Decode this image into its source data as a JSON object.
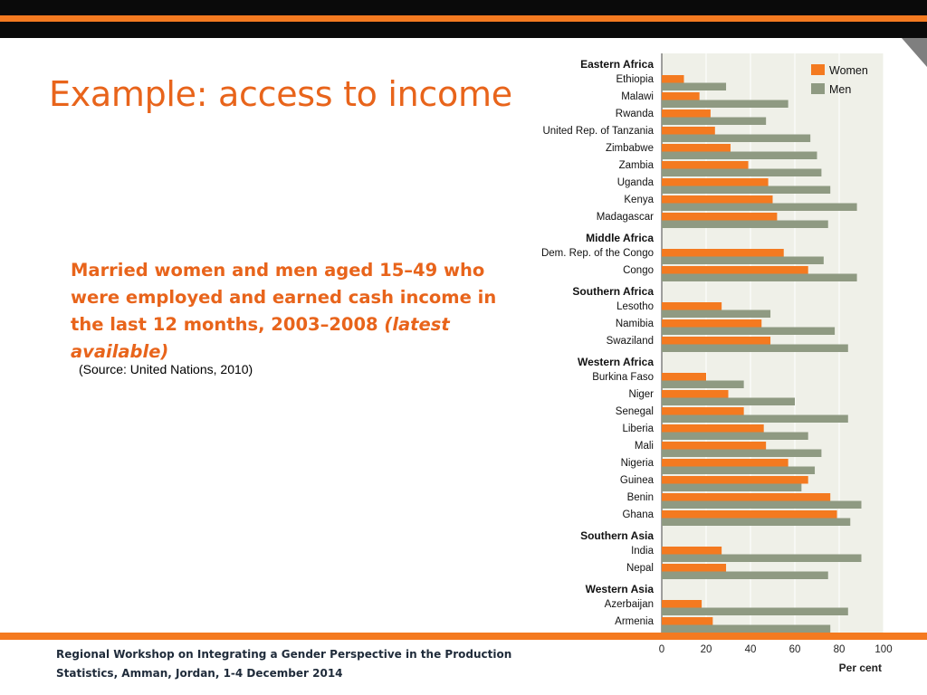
{
  "slide": {
    "title": "Example: access to income",
    "subtitle_main": "Married women and men aged 15–49 who were employed and earned cash income in the last 12 months, 2003–2008 ",
    "subtitle_italic": "(latest available)",
    "source": "(Source: United Nations, 2010)",
    "footer_line1": "Regional Workshop on Integrating a Gender Perspective in the Production",
    "footer_line2": "Statistics, Amman, Jordan, 1-4 December 2014"
  },
  "colors": {
    "accent": "#f47a20",
    "title": "#e8641b",
    "women": "#f47a20",
    "men": "#8f9a82",
    "plot_bg": "#eff0e8"
  },
  "chart_data": {
    "type": "bar",
    "orientation": "horizontal",
    "xlabel": "Per cent",
    "xlim": [
      0,
      100
    ],
    "xticks": [
      0,
      20,
      40,
      60,
      80,
      100
    ],
    "legend_position": "top-right",
    "grid": true,
    "series": [
      {
        "name": "Women",
        "color": "#f47a20"
      },
      {
        "name": "Men",
        "color": "#8f9a82"
      }
    ],
    "groups": [
      {
        "region": "Eastern Africa",
        "countries": [
          {
            "name": "Ethiopia",
            "women": 10,
            "men": 29
          },
          {
            "name": "Malawi",
            "women": 17,
            "men": 57
          },
          {
            "name": "Rwanda",
            "women": 22,
            "men": 47
          },
          {
            "name": "United Rep. of Tanzania",
            "women": 24,
            "men": 67
          },
          {
            "name": "Zimbabwe",
            "women": 31,
            "men": 70
          },
          {
            "name": "Zambia",
            "women": 39,
            "men": 72
          },
          {
            "name": "Uganda",
            "women": 48,
            "men": 76
          },
          {
            "name": "Kenya",
            "women": 50,
            "men": 88
          },
          {
            "name": "Madagascar",
            "women": 52,
            "men": 75
          }
        ]
      },
      {
        "region": "Middle Africa",
        "countries": [
          {
            "name": "Dem. Rep. of the Congo",
            "women": 55,
            "men": 73
          },
          {
            "name": "Congo",
            "women": 66,
            "men": 88
          }
        ]
      },
      {
        "region": "Southern Africa",
        "countries": [
          {
            "name": "Lesotho",
            "women": 27,
            "men": 49
          },
          {
            "name": "Namibia",
            "women": 45,
            "men": 78
          },
          {
            "name": "Swaziland",
            "women": 49,
            "men": 84
          }
        ]
      },
      {
        "region": "Western Africa",
        "countries": [
          {
            "name": "Burkina Faso",
            "women": 20,
            "men": 37
          },
          {
            "name": "Niger",
            "women": 30,
            "men": 60
          },
          {
            "name": "Senegal",
            "women": 37,
            "men": 84
          },
          {
            "name": "Liberia",
            "women": 46,
            "men": 66
          },
          {
            "name": "Mali",
            "women": 47,
            "men": 72
          },
          {
            "name": "Nigeria",
            "women": 57,
            "men": 69
          },
          {
            "name": "Guinea",
            "women": 66,
            "men": 63
          },
          {
            "name": "Benin",
            "women": 76,
            "men": 90
          },
          {
            "name": "Ghana",
            "women": 79,
            "men": 85
          }
        ]
      },
      {
        "region": "Southern Asia",
        "countries": [
          {
            "name": "India",
            "women": 27,
            "men": 90
          },
          {
            "name": "Nepal",
            "women": 29,
            "men": 75
          }
        ]
      },
      {
        "region": "Western Asia",
        "countries": [
          {
            "name": "Azerbaijan",
            "women": 18,
            "men": 84
          },
          {
            "name": "Armenia",
            "women": 23,
            "men": 76
          }
        ]
      }
    ]
  }
}
